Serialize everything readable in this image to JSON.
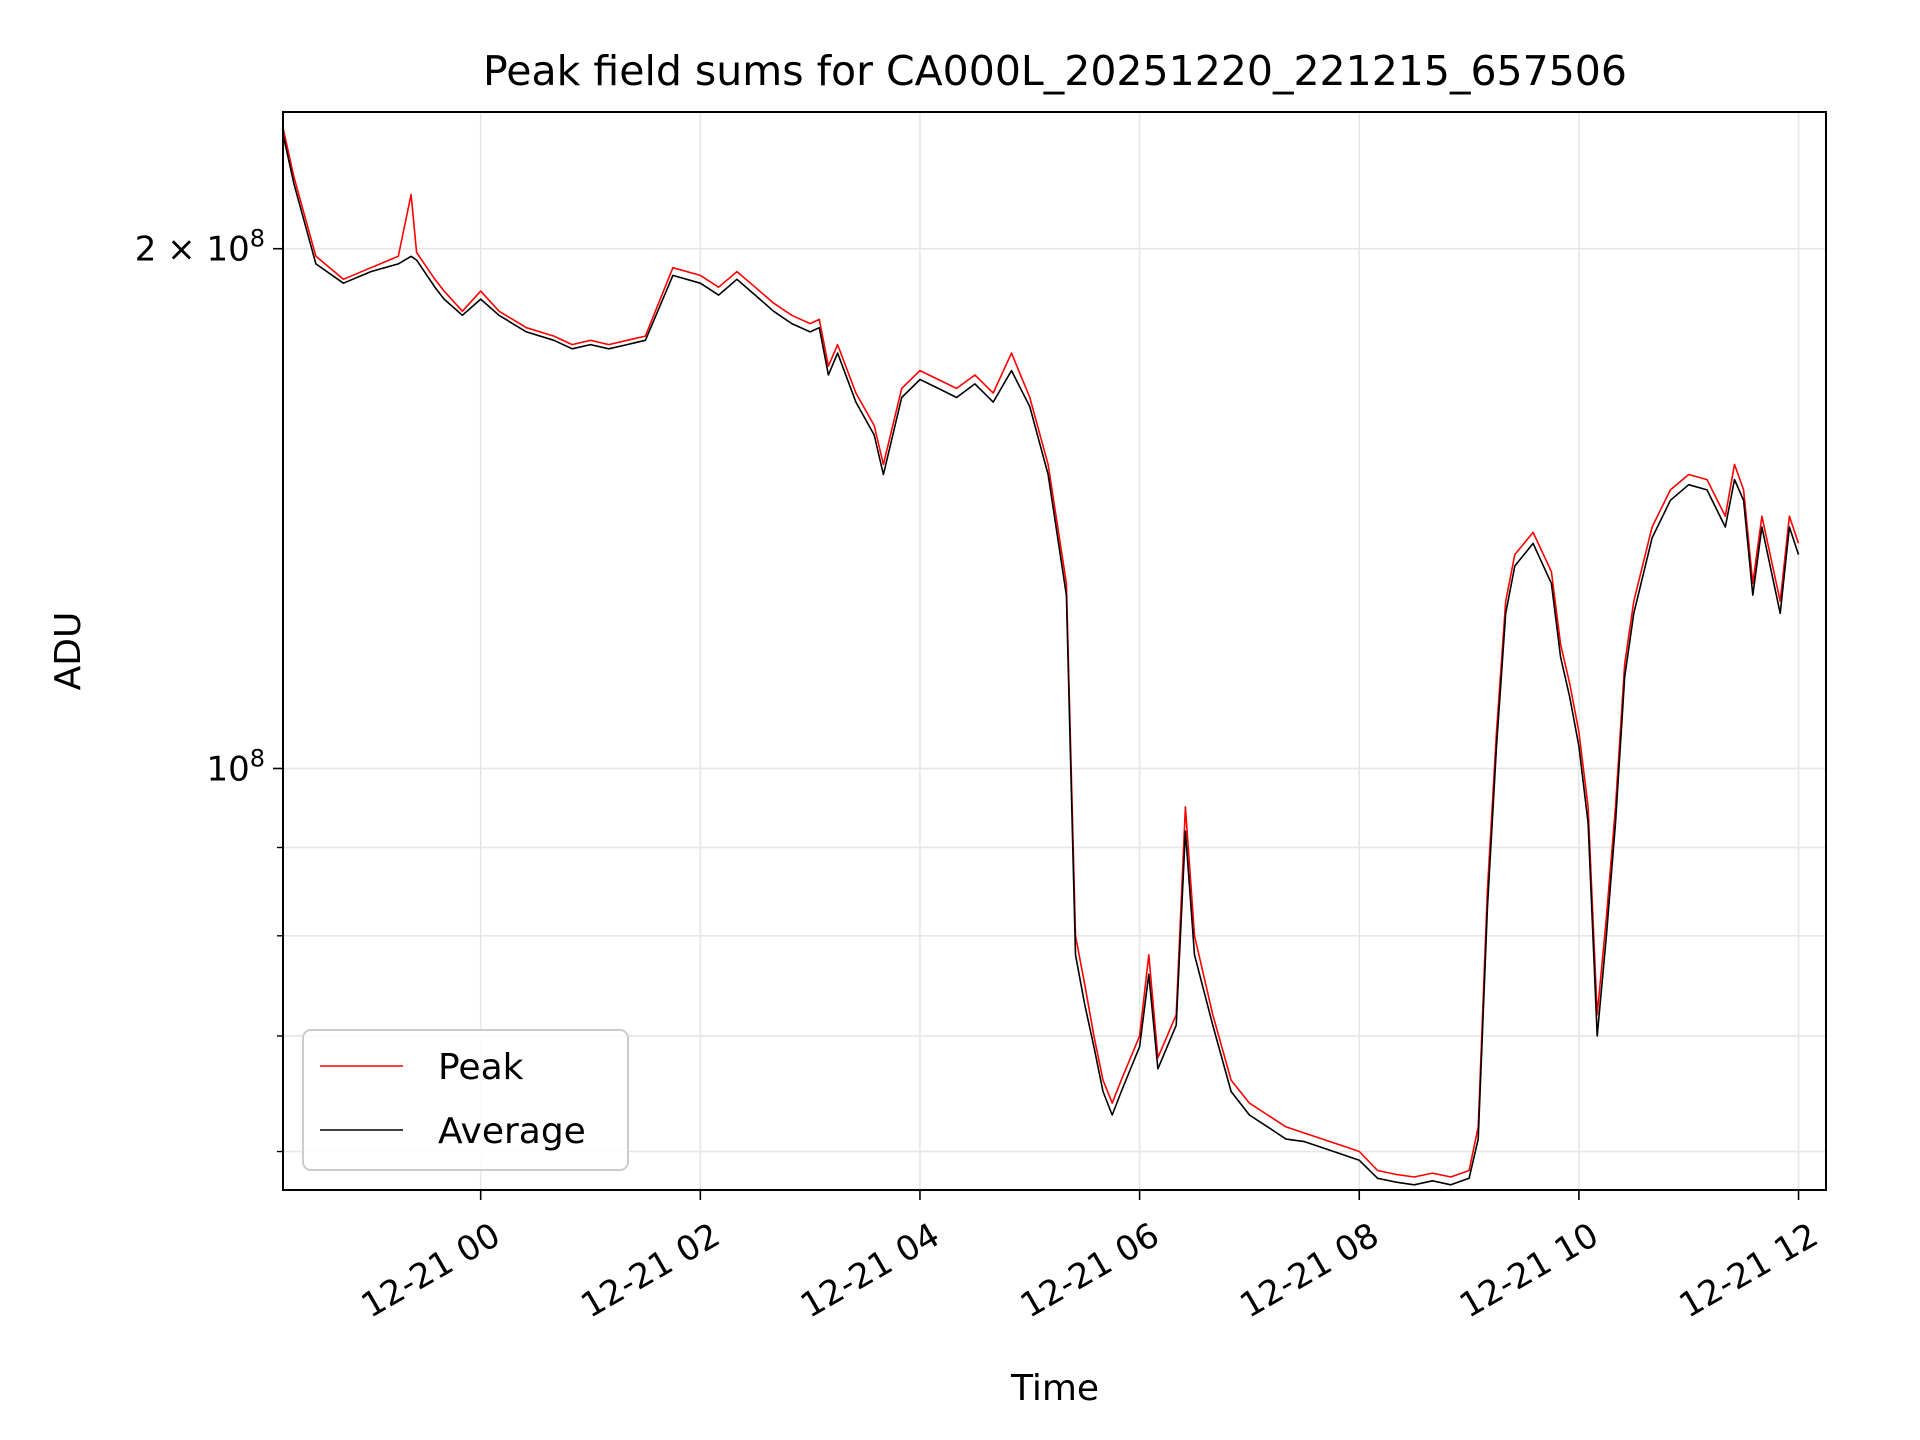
{
  "chart_data": {
    "type": "line",
    "title": "Peak field sums for CA000L_20251220_221215_657506",
    "xlabel": "Time",
    "ylabel": "ADU",
    "yscale": "log",
    "grid": true,
    "legend_position": "lower-left",
    "xlim": [
      "2025-12-20 22:12",
      "2025-12-21 12:15"
    ],
    "ylim": [
      57000000,
      240000000
    ],
    "x_ticks": [
      {
        "t": "2025-12-21 00:00",
        "label": "12-21 00"
      },
      {
        "t": "2025-12-21 02:00",
        "label": "12-21 02"
      },
      {
        "t": "2025-12-21 04:00",
        "label": "12-21 04"
      },
      {
        "t": "2025-12-21 06:00",
        "label": "12-21 06"
      },
      {
        "t": "2025-12-21 08:00",
        "label": "12-21 08"
      },
      {
        "t": "2025-12-21 10:00",
        "label": "12-21 10"
      },
      {
        "t": "2025-12-21 12:00",
        "label": "12-21 12"
      }
    ],
    "y_major_ticks": [
      {
        "value": 100000000,
        "base": "10",
        "exp": "8",
        "prefix": ""
      },
      {
        "value": 200000000,
        "base": "10",
        "exp": "8",
        "prefix": "2 × "
      }
    ],
    "y_minor_ticks": [
      60000000,
      70000000,
      80000000,
      90000000
    ],
    "series": [
      {
        "name": "Peak",
        "color": "#ff0000",
        "points": [
          [
            "2025-12-20 22:12",
            235000000
          ],
          [
            "2025-12-20 22:18",
            220000000
          ],
          [
            "2025-12-20 22:30",
            198000000
          ],
          [
            "2025-12-20 22:45",
            192000000
          ],
          [
            "2025-12-20 23:00",
            195000000
          ],
          [
            "2025-12-20 23:15",
            198000000
          ],
          [
            "2025-12-20 23:22",
            215000000
          ],
          [
            "2025-12-20 23:25",
            199000000
          ],
          [
            "2025-12-20 23:35",
            192000000
          ],
          [
            "2025-12-20 23:40",
            189000000
          ],
          [
            "2025-12-20 23:50",
            184000000
          ],
          [
            "2025-12-21 00:00",
            189000000
          ],
          [
            "2025-12-21 00:10",
            184000000
          ],
          [
            "2025-12-21 00:25",
            180000000
          ],
          [
            "2025-12-21 00:40",
            178000000
          ],
          [
            "2025-12-21 00:50",
            176000000
          ],
          [
            "2025-12-21 01:00",
            177000000
          ],
          [
            "2025-12-21 01:10",
            176000000
          ],
          [
            "2025-12-21 01:20",
            177000000
          ],
          [
            "2025-12-21 01:30",
            178000000
          ],
          [
            "2025-12-21 01:45",
            195000000
          ],
          [
            "2025-12-21 02:00",
            193000000
          ],
          [
            "2025-12-21 02:10",
            190000000
          ],
          [
            "2025-12-21 02:20",
            194000000
          ],
          [
            "2025-12-21 02:30",
            190000000
          ],
          [
            "2025-12-21 02:40",
            186000000
          ],
          [
            "2025-12-21 02:50",
            183000000
          ],
          [
            "2025-12-21 03:00",
            181000000
          ],
          [
            "2025-12-21 03:05",
            182000000
          ],
          [
            "2025-12-21 03:10",
            171000000
          ],
          [
            "2025-12-21 03:15",
            176000000
          ],
          [
            "2025-12-21 03:25",
            165000000
          ],
          [
            "2025-12-21 03:35",
            158000000
          ],
          [
            "2025-12-21 03:40",
            150000000
          ],
          [
            "2025-12-21 03:50",
            166000000
          ],
          [
            "2025-12-21 04:00",
            170000000
          ],
          [
            "2025-12-21 04:10",
            168000000
          ],
          [
            "2025-12-21 04:20",
            166000000
          ],
          [
            "2025-12-21 04:30",
            169000000
          ],
          [
            "2025-12-21 04:40",
            165000000
          ],
          [
            "2025-12-21 04:50",
            174000000
          ],
          [
            "2025-12-21 05:00",
            164000000
          ],
          [
            "2025-12-21 05:10",
            150000000
          ],
          [
            "2025-12-21 05:20",
            128000000
          ],
          [
            "2025-12-21 05:25",
            80000000
          ],
          [
            "2025-12-21 05:30",
            75000000
          ],
          [
            "2025-12-21 05:35",
            70000000
          ],
          [
            "2025-12-21 05:40",
            66000000
          ],
          [
            "2025-12-21 05:45",
            64000000
          ],
          [
            "2025-12-21 05:50",
            66000000
          ],
          [
            "2025-12-21 06:00",
            70000000
          ],
          [
            "2025-12-21 06:05",
            78000000
          ],
          [
            "2025-12-21 06:10",
            68000000
          ],
          [
            "2025-12-21 06:20",
            72000000
          ],
          [
            "2025-12-21 06:25",
            95000000
          ],
          [
            "2025-12-21 06:30",
            80000000
          ],
          [
            "2025-12-21 06:40",
            72000000
          ],
          [
            "2025-12-21 06:50",
            66000000
          ],
          [
            "2025-12-21 07:00",
            64000000
          ],
          [
            "2025-12-21 07:10",
            63000000
          ],
          [
            "2025-12-21 07:20",
            62000000
          ],
          [
            "2025-12-21 07:30",
            61500000
          ],
          [
            "2025-12-21 07:40",
            61000000
          ],
          [
            "2025-12-21 07:50",
            60500000
          ],
          [
            "2025-12-21 08:00",
            60000000
          ],
          [
            "2025-12-21 08:10",
            58500000
          ],
          [
            "2025-12-21 08:20",
            58200000
          ],
          [
            "2025-12-21 08:30",
            58000000
          ],
          [
            "2025-12-21 08:40",
            58300000
          ],
          [
            "2025-12-21 08:50",
            58000000
          ],
          [
            "2025-12-21 09:00",
            58500000
          ],
          [
            "2025-12-21 09:05",
            62000000
          ],
          [
            "2025-12-21 09:10",
            85000000
          ],
          [
            "2025-12-21 09:15",
            105000000
          ],
          [
            "2025-12-21 09:20",
            125000000
          ],
          [
            "2025-12-21 09:25",
            133000000
          ],
          [
            "2025-12-21 09:35",
            137000000
          ],
          [
            "2025-12-21 09:45",
            130000000
          ],
          [
            "2025-12-21 09:50",
            118000000
          ],
          [
            "2025-12-21 09:55",
            112000000
          ],
          [
            "2025-12-21 10:00",
            105000000
          ],
          [
            "2025-12-21 10:05",
            95000000
          ],
          [
            "2025-12-21 10:10",
            72000000
          ],
          [
            "2025-12-21 10:15",
            82000000
          ],
          [
            "2025-12-21 10:20",
            95000000
          ],
          [
            "2025-12-21 10:25",
            115000000
          ],
          [
            "2025-12-21 10:30",
            125000000
          ],
          [
            "2025-12-21 10:40",
            138000000
          ],
          [
            "2025-12-21 10:50",
            145000000
          ],
          [
            "2025-12-21 11:00",
            148000000
          ],
          [
            "2025-12-21 11:10",
            147000000
          ],
          [
            "2025-12-21 11:20",
            140000000
          ],
          [
            "2025-12-21 11:25",
            150000000
          ],
          [
            "2025-12-21 11:30",
            145000000
          ],
          [
            "2025-12-21 11:35",
            128000000
          ],
          [
            "2025-12-21 11:40",
            140000000
          ],
          [
            "2025-12-21 11:50",
            125000000
          ],
          [
            "2025-12-21 11:55",
            140000000
          ],
          [
            "2025-12-21 12:00",
            135000000
          ]
        ]
      },
      {
        "name": "Average",
        "color": "#000000",
        "points": [
          [
            "2025-12-20 22:12",
            233000000
          ],
          [
            "2025-12-20 22:18",
            218000000
          ],
          [
            "2025-12-20 22:30",
            196000000
          ],
          [
            "2025-12-20 22:45",
            191000000
          ],
          [
            "2025-12-20 23:00",
            194000000
          ],
          [
            "2025-12-20 23:15",
            196000000
          ],
          [
            "2025-12-20 23:22",
            198000000
          ],
          [
            "2025-12-20 23:25",
            197000000
          ],
          [
            "2025-12-20 23:35",
            190000000
          ],
          [
            "2025-12-20 23:40",
            187000000
          ],
          [
            "2025-12-20 23:50",
            183000000
          ],
          [
            "2025-12-21 00:00",
            187000000
          ],
          [
            "2025-12-21 00:10",
            183000000
          ],
          [
            "2025-12-21 00:25",
            179000000
          ],
          [
            "2025-12-21 00:40",
            177000000
          ],
          [
            "2025-12-21 00:50",
            175000000
          ],
          [
            "2025-12-21 01:00",
            176000000
          ],
          [
            "2025-12-21 01:10",
            175000000
          ],
          [
            "2025-12-21 01:20",
            176000000
          ],
          [
            "2025-12-21 01:30",
            177000000
          ],
          [
            "2025-12-21 01:45",
            193000000
          ],
          [
            "2025-12-21 02:00",
            191000000
          ],
          [
            "2025-12-21 02:10",
            188000000
          ],
          [
            "2025-12-21 02:20",
            192000000
          ],
          [
            "2025-12-21 02:30",
            188000000
          ],
          [
            "2025-12-21 02:40",
            184000000
          ],
          [
            "2025-12-21 02:50",
            181000000
          ],
          [
            "2025-12-21 03:00",
            179000000
          ],
          [
            "2025-12-21 03:05",
            180000000
          ],
          [
            "2025-12-21 03:10",
            169000000
          ],
          [
            "2025-12-21 03:15",
            174000000
          ],
          [
            "2025-12-21 03:25",
            163000000
          ],
          [
            "2025-12-21 03:35",
            156000000
          ],
          [
            "2025-12-21 03:40",
            148000000
          ],
          [
            "2025-12-21 03:50",
            164000000
          ],
          [
            "2025-12-21 04:00",
            168000000
          ],
          [
            "2025-12-21 04:10",
            166000000
          ],
          [
            "2025-12-21 04:20",
            164000000
          ],
          [
            "2025-12-21 04:30",
            167000000
          ],
          [
            "2025-12-21 04:40",
            163000000
          ],
          [
            "2025-12-21 04:50",
            170000000
          ],
          [
            "2025-12-21 05:00",
            162000000
          ],
          [
            "2025-12-21 05:10",
            148000000
          ],
          [
            "2025-12-21 05:20",
            126000000
          ],
          [
            "2025-12-21 05:25",
            78000000
          ],
          [
            "2025-12-21 05:30",
            73000000
          ],
          [
            "2025-12-21 05:35",
            69000000
          ],
          [
            "2025-12-21 05:40",
            65000000
          ],
          [
            "2025-12-21 05:45",
            63000000
          ],
          [
            "2025-12-21 05:50",
            65000000
          ],
          [
            "2025-12-21 06:00",
            69000000
          ],
          [
            "2025-12-21 06:05",
            76000000
          ],
          [
            "2025-12-21 06:10",
            67000000
          ],
          [
            "2025-12-21 06:20",
            71000000
          ],
          [
            "2025-12-21 06:25",
            92000000
          ],
          [
            "2025-12-21 06:30",
            78000000
          ],
          [
            "2025-12-21 06:40",
            71000000
          ],
          [
            "2025-12-21 06:50",
            65000000
          ],
          [
            "2025-12-21 07:00",
            63000000
          ],
          [
            "2025-12-21 07:10",
            62000000
          ],
          [
            "2025-12-21 07:20",
            61000000
          ],
          [
            "2025-12-21 07:30",
            60800000
          ],
          [
            "2025-12-21 07:40",
            60300000
          ],
          [
            "2025-12-21 07:50",
            59800000
          ],
          [
            "2025-12-21 08:00",
            59300000
          ],
          [
            "2025-12-21 08:10",
            57900000
          ],
          [
            "2025-12-21 08:20",
            57600000
          ],
          [
            "2025-12-21 08:30",
            57400000
          ],
          [
            "2025-12-21 08:40",
            57700000
          ],
          [
            "2025-12-21 08:50",
            57400000
          ],
          [
            "2025-12-21 09:00",
            57900000
          ],
          [
            "2025-12-21 09:05",
            61000000
          ],
          [
            "2025-12-21 09:10",
            83000000
          ],
          [
            "2025-12-21 09:15",
            103000000
          ],
          [
            "2025-12-21 09:20",
            123000000
          ],
          [
            "2025-12-21 09:25",
            131000000
          ],
          [
            "2025-12-21 09:35",
            135000000
          ],
          [
            "2025-12-21 09:45",
            128000000
          ],
          [
            "2025-12-21 09:50",
            116000000
          ],
          [
            "2025-12-21 09:55",
            110000000
          ],
          [
            "2025-12-21 10:00",
            103000000
          ],
          [
            "2025-12-21 10:05",
            93000000
          ],
          [
            "2025-12-21 10:10",
            70000000
          ],
          [
            "2025-12-21 10:15",
            80000000
          ],
          [
            "2025-12-21 10:20",
            93000000
          ],
          [
            "2025-12-21 10:25",
            113000000
          ],
          [
            "2025-12-21 10:30",
            123000000
          ],
          [
            "2025-12-21 10:40",
            136000000
          ],
          [
            "2025-12-21 10:50",
            143000000
          ],
          [
            "2025-12-21 11:00",
            146000000
          ],
          [
            "2025-12-21 11:10",
            145000000
          ],
          [
            "2025-12-21 11:20",
            138000000
          ],
          [
            "2025-12-21 11:25",
            147000000
          ],
          [
            "2025-12-21 11:30",
            143000000
          ],
          [
            "2025-12-21 11:35",
            126000000
          ],
          [
            "2025-12-21 11:40",
            138000000
          ],
          [
            "2025-12-21 11:50",
            123000000
          ],
          [
            "2025-12-21 11:55",
            138000000
          ],
          [
            "2025-12-21 12:00",
            133000000
          ]
        ]
      }
    ]
  }
}
